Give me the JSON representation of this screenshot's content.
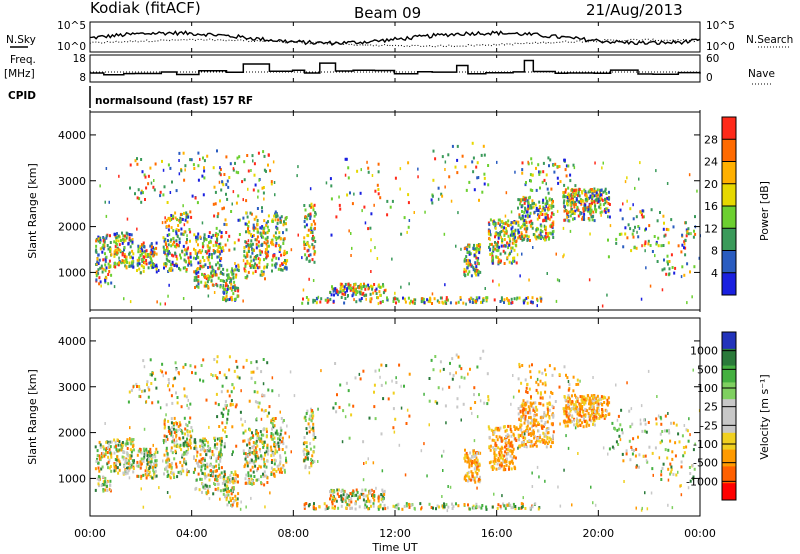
{
  "header": {
    "station": "Kodiak (fitACF)",
    "beam": "Beam 09",
    "date": "21/Aug/2013"
  },
  "left_labels": {
    "nsky": "N.Sky",
    "freq": "Freq.",
    "mhz": "[MHz]",
    "cpid": "CPID"
  },
  "right_labels": {
    "nsearch": "N.Search",
    "nave": "Nave"
  },
  "cpid_text": "normalsound (fast) 157 RF",
  "noise_panel": {
    "ticks_left": [
      "10^5",
      "10^0"
    ],
    "ticks_right": [
      "10^5",
      "10^0"
    ]
  },
  "freq_panel": {
    "ticks_left": [
      "18",
      "8"
    ],
    "ticks_right": [
      "60",
      "0"
    ]
  },
  "chart_data": [
    {
      "type": "heatmap",
      "name": "power",
      "ylabel": "Slant Range [km]",
      "ylim": [
        180,
        4500
      ],
      "yticks": [
        1000,
        2000,
        3000,
        4000
      ],
      "colorbar_label": "Power [dB]",
      "colorbar_ticks": [
        "28",
        "24",
        "20",
        "16",
        "12",
        "8",
        "4"
      ],
      "colors": [
        "#ff2a1a",
        "#ff6a00",
        "#ffb000",
        "#e6d800",
        "#6cd030",
        "#3a9a5a",
        "#2a5cc0",
        "#1a20e0"
      ]
    },
    {
      "type": "heatmap",
      "name": "velocity",
      "ylabel": "Slant Range [km]",
      "ylim": [
        180,
        4500
      ],
      "yticks": [
        1000,
        2000,
        3000,
        4000
      ],
      "colorbar_label": "Velocity [m s⁻¹]",
      "colorbar_ticks": [
        "1000",
        "500",
        "100",
        "25",
        "-25",
        "-100",
        "-500",
        "-1000"
      ],
      "colors": [
        "#2233bb",
        "#2a7a3a",
        "#44b040",
        "#7fd060",
        "#c8c8c8",
        "#c8c8c8",
        "#f0d020",
        "#ff9a00",
        "#ff6000",
        "#ff0000"
      ]
    }
  ],
  "time_axis": {
    "label": "Time UT",
    "ticks": [
      "00:00",
      "04:00",
      "08:00",
      "12:00",
      "16:00",
      "20:00",
      "00:00"
    ]
  }
}
